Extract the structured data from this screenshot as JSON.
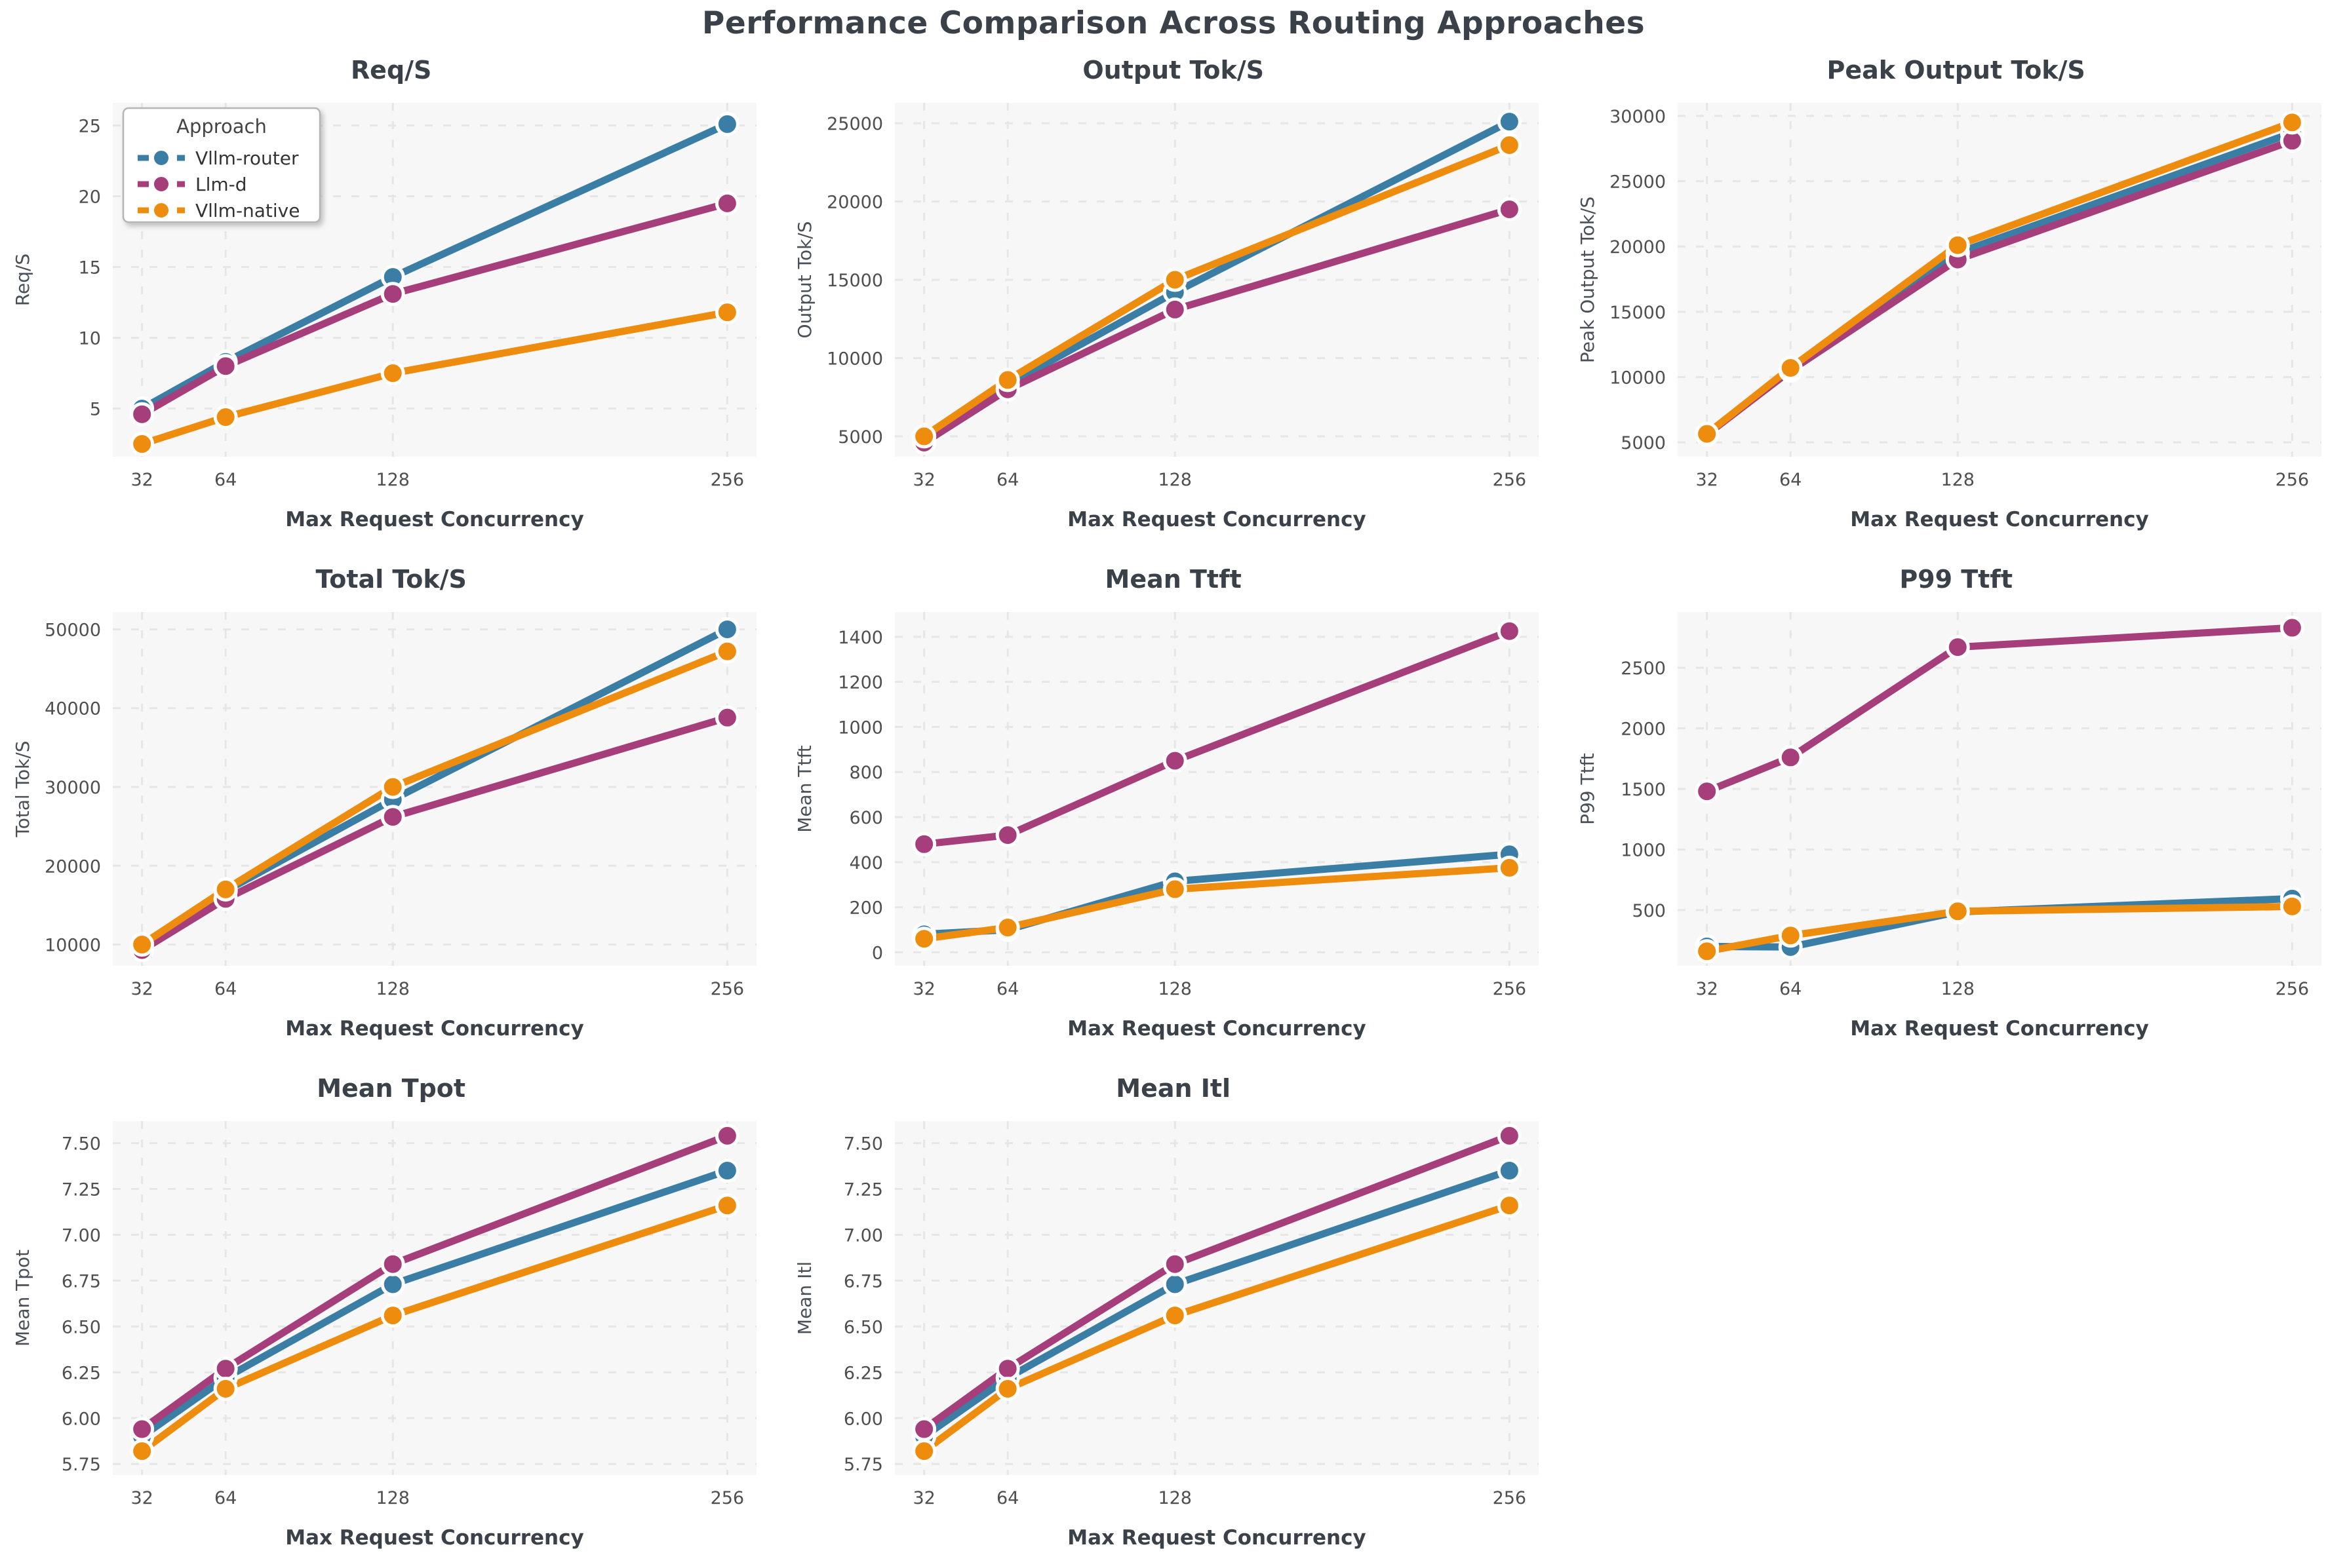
{
  "title": "Performance Comparison Across Routing Approaches",
  "x_axis": {
    "label": "Max Request Concurrency",
    "ticks": [
      32,
      64,
      128,
      256
    ]
  },
  "legend": {
    "title": "Approach",
    "entries": [
      "Vllm-router",
      "Llm-d",
      "Vllm-native"
    ]
  },
  "colors": {
    "vllm_router": "#3b7ea5",
    "llm_d": "#a53e7a",
    "vllm_native": "#ee8c0e",
    "title_text": "#3b4148",
    "tick_text": "#4f4f4f",
    "axis_label_text": "#3b4148",
    "ylabel_text": "#4a5057",
    "plot_bg": "#f7f7f7",
    "grid": "#e6e6e6",
    "legend_border": "#b5b5b5"
  },
  "chart_data": [
    {
      "type": "line",
      "title": "Req/S",
      "ylabel": "Req/S",
      "xlabel": "Max Request Concurrency",
      "x": [
        32,
        64,
        128,
        256
      ],
      "yticks": [
        5,
        10,
        15,
        20,
        25
      ],
      "ytick_decimals": 0,
      "ylim": [
        1.6,
        26.6
      ],
      "legend": true,
      "series": [
        {
          "name": "Vllm-router",
          "color": "#3b7ea5",
          "values": [
            5.0,
            8.3,
            14.3,
            25.1
          ]
        },
        {
          "name": "Llm-d",
          "color": "#a53e7a",
          "values": [
            4.6,
            8.0,
            13.1,
            19.5
          ]
        },
        {
          "name": "Vllm-native",
          "color": "#ee8c0e",
          "values": [
            2.5,
            4.4,
            7.5,
            11.8
          ]
        }
      ]
    },
    {
      "type": "line",
      "title": "Output Tok/S",
      "ylabel": "Output Tok/S",
      "xlabel": "Max Request Concurrency",
      "x": [
        32,
        64,
        128,
        256
      ],
      "yticks": [
        5000,
        10000,
        15000,
        20000,
        25000
      ],
      "ytick_decimals": 0,
      "ylim": [
        3700,
        26300
      ],
      "legend": false,
      "series": [
        {
          "name": "Vllm-router",
          "color": "#3b7ea5",
          "values": [
            5000,
            8300,
            14200,
            25100
          ]
        },
        {
          "name": "Llm-d",
          "color": "#a53e7a",
          "values": [
            4600,
            8000,
            13100,
            19500
          ]
        },
        {
          "name": "Vllm-native",
          "color": "#ee8c0e",
          "values": [
            5000,
            8600,
            15000,
            23600
          ]
        }
      ]
    },
    {
      "type": "line",
      "title": "Peak Output Tok/S",
      "ylabel": "Peak Output Tok/S",
      "xlabel": "Max Request Concurrency",
      "x": [
        32,
        64,
        128,
        256
      ],
      "yticks": [
        5000,
        10000,
        15000,
        20000,
        25000,
        30000
      ],
      "ytick_decimals": 0,
      "ylim": [
        3900,
        31000
      ],
      "legend": false,
      "series": [
        {
          "name": "Vllm-router",
          "color": "#3b7ea5",
          "values": [
            5600,
            10600,
            19500,
            28700
          ]
        },
        {
          "name": "Llm-d",
          "color": "#a53e7a",
          "values": [
            5600,
            10500,
            19000,
            28100
          ]
        },
        {
          "name": "Vllm-native",
          "color": "#ee8c0e",
          "values": [
            5650,
            10700,
            20100,
            29500
          ]
        }
      ]
    },
    {
      "type": "line",
      "title": "Total Tok/S",
      "ylabel": "Total Tok/S",
      "xlabel": "Max Request Concurrency",
      "x": [
        32,
        64,
        128,
        256
      ],
      "yticks": [
        10000,
        20000,
        30000,
        40000,
        50000
      ],
      "ytick_decimals": 0,
      "ylim": [
        7300,
        52200
      ],
      "legend": false,
      "series": [
        {
          "name": "Vllm-router",
          "color": "#3b7ea5",
          "values": [
            10000,
            16800,
            28400,
            50000
          ]
        },
        {
          "name": "Llm-d",
          "color": "#a53e7a",
          "values": [
            9300,
            15800,
            26200,
            38800
          ]
        },
        {
          "name": "Vllm-native",
          "color": "#ee8c0e",
          "values": [
            10000,
            17000,
            30000,
            47200
          ]
        }
      ]
    },
    {
      "type": "line",
      "title": "Mean Ttft",
      "ylabel": "Mean Ttft",
      "xlabel": "Max Request Concurrency",
      "x": [
        32,
        64,
        128,
        256
      ],
      "yticks": [
        0,
        200,
        400,
        600,
        800,
        1000,
        1200,
        1400
      ],
      "ytick_decimals": 0,
      "ylim": [
        -60,
        1510
      ],
      "legend": false,
      "series": [
        {
          "name": "Vllm-router",
          "color": "#3b7ea5",
          "values": [
            80,
            100,
            315,
            435
          ]
        },
        {
          "name": "Llm-d",
          "color": "#a53e7a",
          "values": [
            480,
            520,
            850,
            1425
          ]
        },
        {
          "name": "Vllm-native",
          "color": "#ee8c0e",
          "values": [
            60,
            110,
            280,
            375
          ]
        }
      ]
    },
    {
      "type": "line",
      "title": "P99 Ttft",
      "ylabel": "P99 Ttft",
      "xlabel": "Max Request Concurrency",
      "x": [
        32,
        64,
        128,
        256
      ],
      "yticks": [
        500,
        1000,
        1500,
        2000,
        2500
      ],
      "ytick_decimals": 0,
      "ylim": [
        40,
        2960
      ],
      "legend": false,
      "series": [
        {
          "name": "Vllm-router",
          "color": "#3b7ea5",
          "values": [
            200,
            195,
            485,
            595
          ]
        },
        {
          "name": "Llm-d",
          "color": "#a53e7a",
          "values": [
            1480,
            1760,
            2670,
            2830
          ]
        },
        {
          "name": "Vllm-native",
          "color": "#ee8c0e",
          "values": [
            160,
            290,
            490,
            530
          ]
        }
      ]
    },
    {
      "type": "line",
      "title": "Mean Tpot",
      "ylabel": "Mean Tpot",
      "xlabel": "Max Request Concurrency",
      "x": [
        32,
        64,
        128,
        256
      ],
      "yticks": [
        5.75,
        6.0,
        6.25,
        6.5,
        6.75,
        7.0,
        7.25,
        7.5
      ],
      "ytick_decimals": 2,
      "ylim": [
        5.69,
        7.62
      ],
      "legend": false,
      "series": [
        {
          "name": "Vllm-router",
          "color": "#3b7ea5",
          "values": [
            5.9,
            6.22,
            6.73,
            7.35
          ]
        },
        {
          "name": "Llm-d",
          "color": "#a53e7a",
          "values": [
            5.94,
            6.27,
            6.84,
            7.54
          ]
        },
        {
          "name": "Vllm-native",
          "color": "#ee8c0e",
          "values": [
            5.82,
            6.16,
            6.56,
            7.16
          ]
        }
      ]
    },
    {
      "type": "line",
      "title": "Mean Itl",
      "ylabel": "Mean Itl",
      "xlabel": "Max Request Concurrency",
      "x": [
        32,
        64,
        128,
        256
      ],
      "yticks": [
        5.75,
        6.0,
        6.25,
        6.5,
        6.75,
        7.0,
        7.25,
        7.5
      ],
      "ytick_decimals": 2,
      "ylim": [
        5.69,
        7.62
      ],
      "legend": false,
      "series": [
        {
          "name": "Vllm-router",
          "color": "#3b7ea5",
          "values": [
            5.9,
            6.22,
            6.73,
            7.35
          ]
        },
        {
          "name": "Llm-d",
          "color": "#a53e7a",
          "values": [
            5.94,
            6.27,
            6.84,
            7.54
          ]
        },
        {
          "name": "Vllm-native",
          "color": "#ee8c0e",
          "values": [
            5.82,
            6.16,
            6.56,
            7.16
          ]
        }
      ]
    }
  ]
}
